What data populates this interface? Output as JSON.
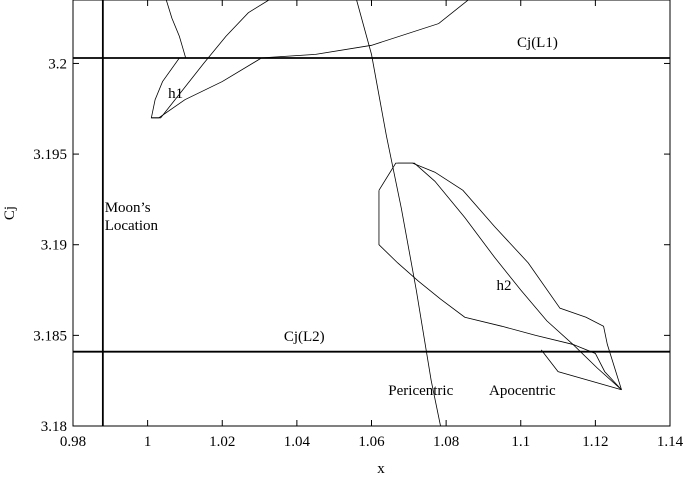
{
  "chart_data": {
    "type": "line",
    "title": "",
    "xlabel": "x",
    "ylabel": "Cj",
    "xlim": [
      0.98,
      1.14
    ],
    "ylim": [
      3.18,
      3.2035
    ],
    "xticks": [
      0.98,
      1,
      1.02,
      1.04,
      1.06,
      1.08,
      1.1,
      1.12,
      1.14
    ],
    "xtick_labels": [
      "0.98",
      "1",
      "1.02",
      "1.04",
      "1.06",
      "1.08",
      "1.1",
      "1.12",
      "1.14"
    ],
    "yticks": [
      3.18,
      3.185,
      3.19,
      3.195,
      3.2
    ],
    "ytick_labels": [
      "3.18",
      "3.185",
      "3.19",
      "3.195",
      "3.2"
    ],
    "grid": false,
    "reference_lines": [
      {
        "orientation": "horizontal",
        "value": 3.2003,
        "label": "Cj(L1)"
      },
      {
        "orientation": "horizontal",
        "value": 3.1841,
        "label": "Cj(L2)"
      },
      {
        "orientation": "vertical",
        "value": 0.988,
        "label": "Moon’s Location"
      }
    ],
    "series": [
      {
        "x": [
          1.005,
          1.0065,
          1.0085,
          1.0095,
          1.0102,
          1.0085,
          1.004,
          1.002,
          1.001,
          1.0035,
          1.0085,
          1.015,
          1.021,
          1.027,
          1.0325,
          1.04,
          1.048,
          1.058
        ],
        "y": [
          3.2035,
          3.2025,
          3.2015,
          3.2008,
          3.2003,
          3.2003,
          3.199,
          3.198,
          3.197,
          3.197,
          3.1983,
          3.2,
          3.2015,
          3.2028,
          3.2035,
          3.2045,
          3.206,
          3.208
        ]
      },
      {
        "x": [
          1.03,
          1.045,
          1.06,
          1.078,
          1.092,
          1.105
        ],
        "y": [
          3.2003,
          3.2005,
          3.201,
          3.2022,
          3.2045,
          3.208
        ]
      },
      {
        "x": [
          1.0305,
          1.02,
          1.01,
          1.003,
          1.001
        ],
        "y": [
          3.2003,
          3.199,
          3.198,
          3.197,
          3.197
        ]
      },
      {
        "x": [
          1.062,
          1.062,
          1.067,
          1.0725,
          1.0785,
          1.085,
          1.095,
          1.104,
          1.114,
          1.12,
          1.1225,
          1.127
        ],
        "y": [
          3.193,
          3.19,
          3.189,
          3.188,
          3.187,
          3.186,
          3.1855,
          3.185,
          3.1845,
          3.184,
          3.183,
          3.182
        ]
      },
      {
        "x": [
          1.062,
          1.0665,
          1.071,
          1.077,
          1.0845,
          1.093,
          1.102,
          1.1105,
          1.1175,
          1.1222,
          1.1232,
          1.127
        ],
        "y": [
          3.193,
          3.1945,
          3.1945,
          3.194,
          3.193,
          3.191,
          3.189,
          3.1865,
          3.186,
          3.1855,
          3.1845,
          3.182
        ]
      },
      {
        "x": [
          1.067,
          1.0715,
          1.077,
          1.085,
          1.093,
          1.1,
          1.107,
          1.114,
          1.1205,
          1.127,
          1.11,
          1.1055
        ],
        "y": [
          3.1945,
          3.1945,
          3.1935,
          3.1915,
          3.1893,
          3.1875,
          3.1858,
          3.1845,
          3.1832,
          3.182,
          3.183,
          3.1842
        ]
      },
      {
        "x": [
          1.056,
          1.06,
          1.064,
          1.068,
          1.072,
          1.076,
          1.0785
        ],
        "y": [
          3.2035,
          3.2005,
          3.196,
          3.192,
          3.1875,
          3.1825,
          3.18
        ]
      }
    ],
    "annotations": [
      {
        "text": "h1",
        "x": 1.0055,
        "y": 3.1981
      },
      {
        "text": "h2",
        "x": 1.0935,
        "y": 3.1875
      },
      {
        "text": "Moon’s",
        "x": 0.9885,
        "y": 3.1918
      },
      {
        "text": "Location",
        "x": 0.9885,
        "y": 3.1908
      },
      {
        "text": "Pericentric",
        "x": 1.0645,
        "y": 3.1817
      },
      {
        "text": "Apocentric",
        "x": 1.0915,
        "y": 3.1817
      },
      {
        "text": "Cj(L1)",
        "x": 1.099,
        "y": 3.2009
      },
      {
        "text": "Cj(L2)",
        "x": 1.0365,
        "y": 3.1847
      }
    ]
  }
}
